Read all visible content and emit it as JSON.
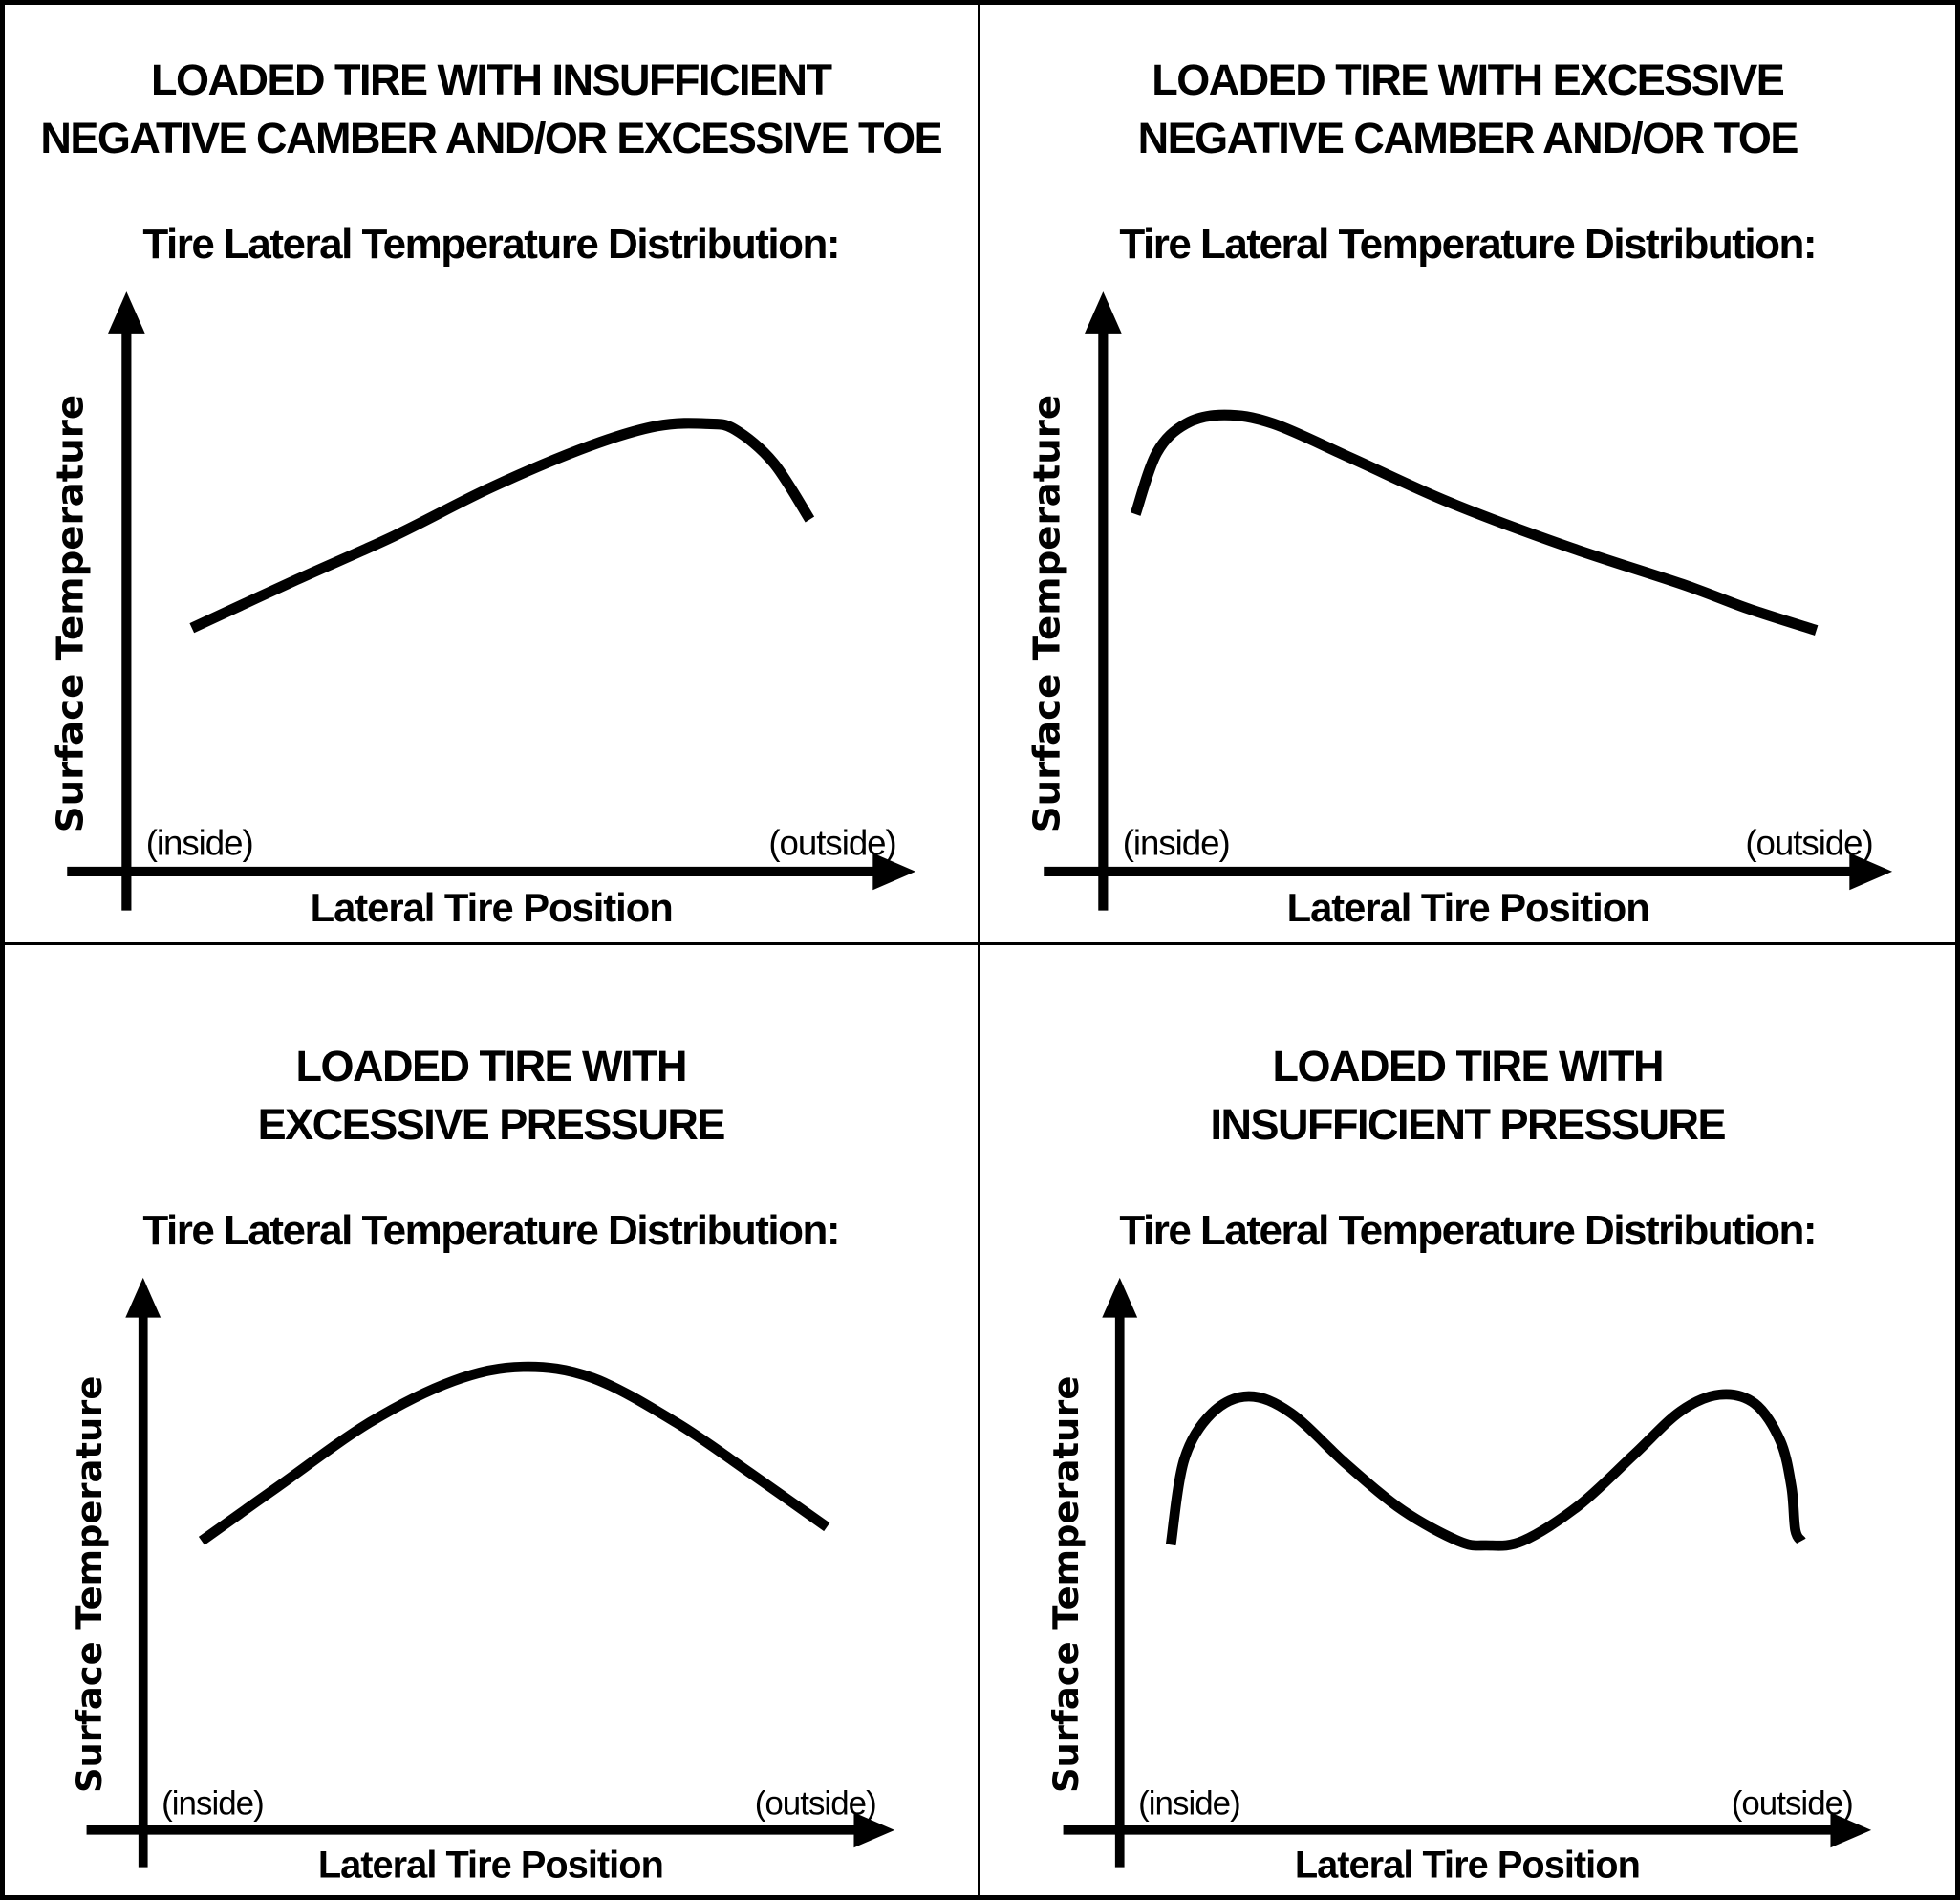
{
  "page": {
    "background_color": "#ffffff",
    "line_color": "#000000"
  },
  "chart_data": [
    {
      "type": "line",
      "position": "top-left",
      "title_lines": [
        "LOADED TIRE WITH INSUFFICIENT",
        "NEGATIVE CAMBER AND/OR EXCESSIVE TOE"
      ],
      "subtitle": "Tire Lateral Temperature Distribution:",
      "xlabel": "Lateral Tire Position",
      "ylabel": "Surface Temperature",
      "x_annotations": {
        "left": "(inside)",
        "right": "(outside)"
      },
      "axis_ranges": {
        "x": [
          0,
          100
        ],
        "y": [
          0,
          100
        ]
      },
      "grid": false,
      "legend": false,
      "x": [
        8.3,
        21.6,
        34.0,
        46.3,
        58.6,
        67.3,
        73.7,
        77.2,
        82.1,
        86.7
      ],
      "y": [
        41.7,
        50.0,
        57.5,
        65.8,
        72.8,
        76.3,
        76.7,
        75.7,
        70.0,
        60.3
      ]
    },
    {
      "type": "line",
      "position": "top-right",
      "title_lines": [
        "LOADED TIRE WITH EXCESSIVE",
        "NEGATIVE CAMBER AND/OR TOE"
      ],
      "subtitle": "Tire Lateral Temperature Distribution:",
      "xlabel": "Lateral Tire Position",
      "ylabel": "Surface Temperature",
      "x_annotations": {
        "left": "(inside)",
        "right": "(outside)"
      },
      "axis_ranges": {
        "x": [
          0,
          100
        ],
        "y": [
          0,
          100
        ]
      },
      "grid": false,
      "legend": false,
      "x": [
        4.1,
        6.8,
        10.5,
        15.4,
        21.6,
        31.5,
        43.8,
        58.6,
        73.5,
        81.9,
        90.5
      ],
      "y": [
        61.2,
        71.7,
        76.7,
        78.2,
        76.7,
        70.8,
        63.3,
        55.8,
        49.2,
        45.0,
        41.3
      ]
    },
    {
      "type": "line",
      "position": "bottom-left",
      "title_lines": [
        "LOADED TIRE WITH",
        "EXCESSIVE PRESSURE"
      ],
      "subtitle": "Tire Lateral Temperature Distribution:",
      "xlabel": "Lateral Tire Position",
      "ylabel": "Surface Temperature",
      "x_annotations": {
        "left": "(inside)",
        "right": "(outside)"
      },
      "axis_ranges": {
        "x": [
          0,
          100
        ],
        "y": [
          0,
          100
        ]
      },
      "grid": false,
      "legend": false,
      "x": [
        7.8,
        17.9,
        30.2,
        41.4,
        50.6,
        59.9,
        71.0,
        80.9,
        91.1
      ],
      "y": [
        52.0,
        61.7,
        73.3,
        80.8,
        83.3,
        81.3,
        73.3,
        64.2,
        54.5
      ]
    },
    {
      "type": "line",
      "position": "bottom-right",
      "title_lines": [
        "LOADED TIRE WITH",
        "INSUFFICIENT PRESSURE"
      ],
      "subtitle": "Tire Lateral Temperature Distribution:",
      "xlabel": "Lateral Tire Position",
      "ylabel": "Surface Temperature",
      "x_annotations": {
        "left": "(inside)",
        "right": "(outside)"
      },
      "axis_ranges": {
        "x": [
          0,
          100
        ],
        "y": [
          0,
          100
        ]
      },
      "grid": false,
      "legend": false,
      "x": [
        6.8,
        8.6,
        12.3,
        17.2,
        22.8,
        30.2,
        37.7,
        45.1,
        48.8,
        53.7,
        61.1,
        68.5,
        74.7,
        79.9,
        84.6,
        88.0,
        89.5,
        90.0,
        90.8
      ],
      "y": [
        51.3,
        66.7,
        75.0,
        78.0,
        75.0,
        65.8,
        57.5,
        52.0,
        51.2,
        52.0,
        58.3,
        67.5,
        75.3,
        78.3,
        76.7,
        70.0,
        61.7,
        54.0,
        52.0
      ]
    }
  ]
}
